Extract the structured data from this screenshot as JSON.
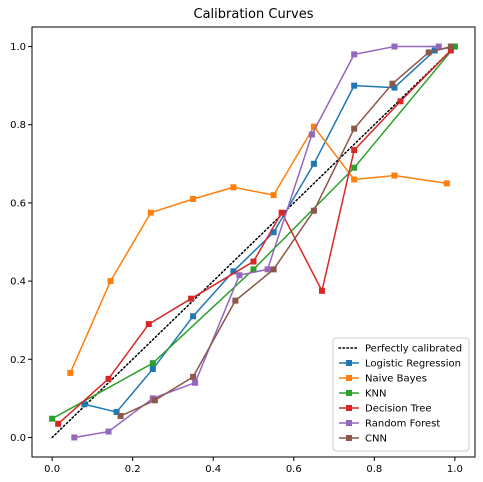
{
  "chart_data": {
    "type": "line",
    "title": "Calibration Curves",
    "xlabel": "",
    "ylabel": "",
    "xlim": [
      -0.05,
      1.05
    ],
    "ylim": [
      -0.05,
      1.05
    ],
    "xticks": [
      0.0,
      0.2,
      0.4,
      0.6,
      0.8,
      1.0
    ],
    "yticks": [
      0.0,
      0.2,
      0.4,
      0.6,
      0.8,
      1.0
    ],
    "xtick_labels": [
      "0.0",
      "0.2",
      "0.4",
      "0.6",
      "0.8",
      "1.0"
    ],
    "ytick_labels": [
      "0.0",
      "0.2",
      "0.4",
      "0.6",
      "0.8",
      "1.0"
    ],
    "grid": false,
    "legend_position": "bottom-right",
    "reference": {
      "name": "Perfectly calibrated",
      "x": [
        0,
        1
      ],
      "y": [
        0,
        1
      ],
      "color": "#000000",
      "style": "dotted"
    },
    "series": [
      {
        "name": "Logistic Regression",
        "color": "#1f77b4",
        "x": [
          0.08,
          0.16,
          0.25,
          0.35,
          0.45,
          0.55,
          0.65,
          0.75,
          0.85,
          0.95,
          1.0
        ],
        "y": [
          0.085,
          0.065,
          0.175,
          0.31,
          0.425,
          0.525,
          0.7,
          0.9,
          0.895,
          0.99,
          1.0
        ]
      },
      {
        "name": "Naive Bayes",
        "color": "#ff7f0e",
        "x": [
          0.045,
          0.145,
          0.245,
          0.35,
          0.45,
          0.55,
          0.65,
          0.75,
          0.85,
          0.98
        ],
        "y": [
          0.165,
          0.4,
          0.575,
          0.61,
          0.64,
          0.62,
          0.795,
          0.66,
          0.67,
          0.65
        ]
      },
      {
        "name": "KNN",
        "color": "#2ca02c",
        "x": [
          0.0,
          0.25,
          0.5,
          0.75,
          1.0
        ],
        "y": [
          0.048,
          0.19,
          0.43,
          0.69,
          1.0
        ]
      },
      {
        "name": "Decision Tree",
        "color": "#d62728",
        "x": [
          0.015,
          0.14,
          0.24,
          0.345,
          0.5,
          0.57,
          0.67,
          0.75,
          0.865,
          0.99
        ],
        "y": [
          0.035,
          0.15,
          0.29,
          0.355,
          0.45,
          0.575,
          0.375,
          0.735,
          0.86,
          0.99
        ]
      },
      {
        "name": "Random Forest",
        "color": "#9467bd",
        "x": [
          0.055,
          0.14,
          0.25,
          0.355,
          0.465,
          0.535,
          0.645,
          0.75,
          0.85,
          0.96
        ],
        "y": [
          0.0,
          0.015,
          0.1,
          0.14,
          0.415,
          0.43,
          0.775,
          0.98,
          1.0,
          1.0
        ]
      },
      {
        "name": "CNN",
        "color": "#8c564b",
        "x": [
          0.17,
          0.255,
          0.35,
          0.455,
          0.55,
          0.65,
          0.75,
          0.845,
          0.935,
          0.99
        ],
        "y": [
          0.055,
          0.095,
          0.155,
          0.35,
          0.43,
          0.58,
          0.79,
          0.905,
          0.985,
          1.0
        ]
      }
    ]
  }
}
